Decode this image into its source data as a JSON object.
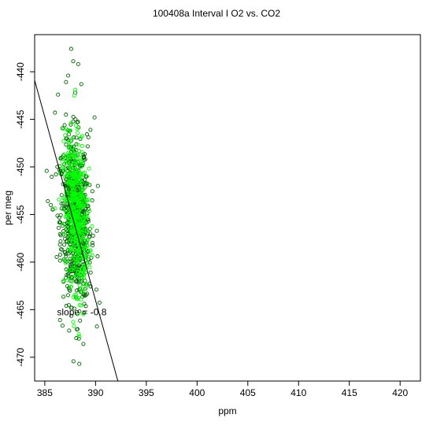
{
  "chart_data": {
    "type": "scatter",
    "title": "100408a   Interval I O2 vs. CO2",
    "xlabel": "ppm",
    "ylabel": "per meg",
    "xlim": [
      384,
      422
    ],
    "ylim": [
      -472.5,
      -436.1
    ],
    "xticks": [
      385,
      390,
      395,
      400,
      405,
      410,
      415,
      420
    ],
    "yticks": [
      -440,
      -445,
      -450,
      -455,
      -460,
      -465,
      -470
    ],
    "annotation": "slope =  -0.8",
    "annotation_pos": {
      "x": 386.2,
      "y": -465.6
    },
    "fit_line": {
      "slope": -0.8,
      "points": [
        [
          384,
          -440.9
        ],
        [
          392.2,
          -472.5
        ]
      ]
    },
    "series": [
      {
        "marker": "open-circle",
        "color": "#006400",
        "cloud": {
          "x_center": 388.0,
          "x_sd": 0.75,
          "y_center": -455.5,
          "y_sd": 4.4,
          "n": 700
        },
        "outliers": [
          [
            387.6,
            -437.6
          ],
          [
            387.8,
            -438.9
          ],
          [
            388.3,
            -439.2
          ],
          [
            387.3,
            -440.4
          ],
          [
            388.6,
            -441.3
          ],
          [
            388.0,
            -442.2
          ],
          [
            389.9,
            -444.8
          ],
          [
            386.3,
            -442.4
          ],
          [
            386.0,
            -444.3
          ],
          [
            388.8,
            -468.6
          ],
          [
            387.4,
            -467.2
          ],
          [
            388.1,
            -468.0
          ],
          [
            388.4,
            -470.7
          ],
          [
            386.5,
            -466.1
          ],
          [
            385.3,
            -453.6
          ],
          [
            385.6,
            -454.0
          ],
          [
            390.2,
            -459.4
          ],
          [
            389.5,
            -446.1
          ],
          [
            389.3,
            -446.9
          ]
        ]
      },
      {
        "marker": "open-circle",
        "color": "#00ff00",
        "cloud": {
          "x_center": 388.1,
          "x_sd": 0.55,
          "y_center": -455.0,
          "y_sd": 4.0,
          "n": 500
        },
        "outliers": [
          [
            388.0,
            -441.9
          ],
          [
            387.9,
            -442.5
          ],
          [
            388.2,
            -446.0
          ],
          [
            387.7,
            -447.0
          ],
          [
            388.4,
            -467.8
          ]
        ]
      }
    ]
  }
}
